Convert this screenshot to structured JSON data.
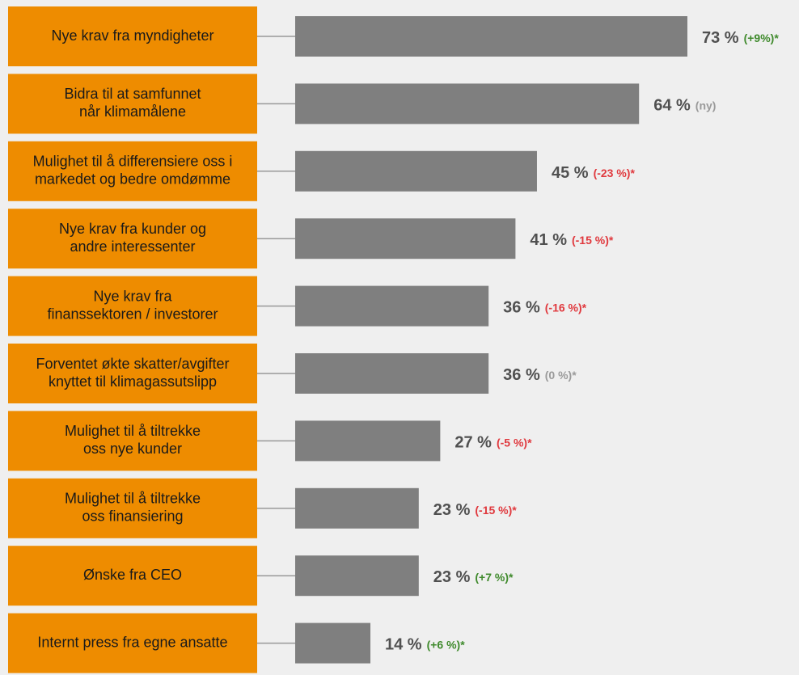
{
  "chart_data": {
    "type": "bar",
    "categories": [
      [
        "Nye krav fra myndigheter"
      ],
      [
        "Bidra til at samfunnet",
        "når klimamålene"
      ],
      [
        "Mulighet til å differensiere oss i",
        "markedet og bedre omdømme"
      ],
      [
        "Nye krav fra kunder og",
        "andre interessenter"
      ],
      [
        "Nye krav fra",
        "finanssektoren / investorer"
      ],
      [
        "Forventet økte skatter/avgifter",
        "knyttet til klimagassutslipp"
      ],
      [
        "Mulighet til å tiltrekke",
        "oss nye kunder"
      ],
      [
        "Mulighet til å tiltrekke",
        "oss finansiering"
      ],
      [
        "Ønske fra CEO"
      ],
      [
        "Internt press fra egne ansatte"
      ]
    ],
    "values": [
      73,
      64,
      45,
      41,
      36,
      36,
      27,
      23,
      23,
      14
    ],
    "value_labels": [
      "73 %",
      "64 %",
      "45 %",
      "41 %",
      "36 %",
      "36 %",
      "27 %",
      "23 %",
      "23 %",
      "14 %"
    ],
    "annotations": [
      "(+9%)*",
      "(ny)",
      "(-23 %)*",
      "(-15 %)*",
      "(-16 %)*",
      "(0 %)*",
      "(-5 %)*",
      "(-15 %)*",
      "(+7 %)*",
      "(+6 %)*"
    ],
    "annotation_colors": [
      "#3f8a2c",
      "#9a9a9a",
      "#e0393e",
      "#e0393e",
      "#e0393e",
      "#9a9a9a",
      "#e0393e",
      "#e0393e",
      "#3f8a2c",
      "#3f8a2c"
    ],
    "color": "#7f7f7f",
    "label_color": "#ee8c00"
  }
}
